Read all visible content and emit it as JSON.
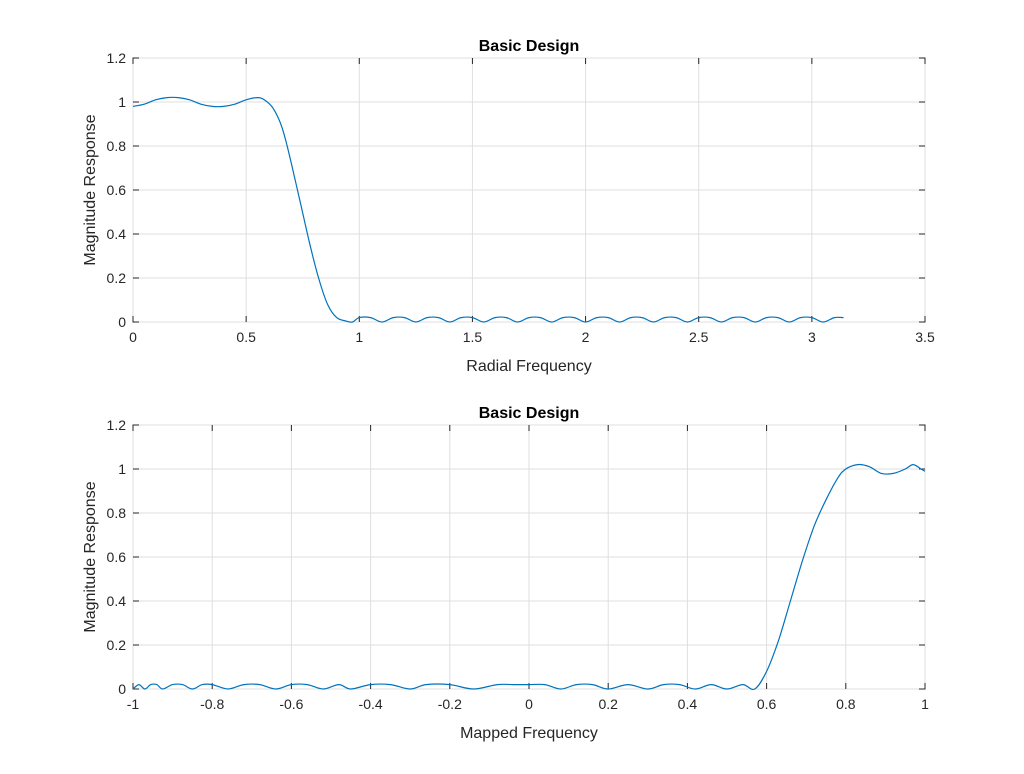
{
  "colors": {
    "series": "#0072bd",
    "grid": "#dfdfdf",
    "axis": "#262626",
    "background": "#ffffff"
  },
  "chart_data": [
    {
      "type": "line",
      "title": "Basic Design",
      "xlabel": "Radial Frequency",
      "ylabel": "Magnitude Response",
      "xlim": [
        0,
        3.5
      ],
      "ylim": [
        0,
        1.2
      ],
      "xticks": [
        0,
        0.5,
        1,
        1.5,
        2,
        2.5,
        3,
        3.5
      ],
      "xtick_labels": [
        "0",
        "0.5",
        "1",
        "1.5",
        "2",
        "2.5",
        "3",
        "3.5"
      ],
      "yticks": [
        0,
        0.2,
        0.4,
        0.6,
        0.8,
        1,
        1.2
      ],
      "ytick_labels": [
        "0",
        "0.2",
        "0.4",
        "0.6",
        "0.8",
        "1",
        "1.2"
      ],
      "grid": true,
      "series": [
        {
          "x": [
            0,
            0.05,
            0.1,
            0.15,
            0.2,
            0.25,
            0.3,
            0.35,
            0.4,
            0.45,
            0.5,
            0.55,
            0.58,
            0.62,
            0.66,
            0.7,
            0.74,
            0.78,
            0.82,
            0.86,
            0.9,
            0.94,
            0.97,
            1.0,
            1.05,
            1.1,
            1.15,
            1.2,
            1.25,
            1.3,
            1.35,
            1.4,
            1.45,
            1.5,
            1.55,
            1.6,
            1.65,
            1.7,
            1.75,
            1.8,
            1.85,
            1.9,
            1.95,
            2.0,
            2.05,
            2.1,
            2.15,
            2.2,
            2.25,
            2.3,
            2.35,
            2.4,
            2.45,
            2.5,
            2.55,
            2.6,
            2.65,
            2.7,
            2.75,
            2.8,
            2.85,
            2.9,
            2.95,
            3.0,
            3.05,
            3.1,
            3.14
          ],
          "y": [
            0.98,
            0.99,
            1.01,
            1.02,
            1.02,
            1.01,
            0.99,
            0.98,
            0.98,
            0.99,
            1.01,
            1.02,
            1.01,
            0.97,
            0.88,
            0.72,
            0.54,
            0.36,
            0.2,
            0.08,
            0.02,
            0.005,
            0.0,
            0.02,
            0.02,
            0.0,
            0.02,
            0.02,
            0.0,
            0.02,
            0.02,
            0.0,
            0.02,
            0.02,
            0.0,
            0.02,
            0.02,
            0.0,
            0.02,
            0.02,
            0.0,
            0.02,
            0.02,
            0.0,
            0.02,
            0.02,
            0.0,
            0.02,
            0.02,
            0.0,
            0.02,
            0.02,
            0.0,
            0.02,
            0.02,
            0.0,
            0.02,
            0.02,
            0.0,
            0.02,
            0.02,
            0.0,
            0.02,
            0.02,
            0.0,
            0.02,
            0.02
          ]
        }
      ]
    },
    {
      "type": "line",
      "title": "Basic Design",
      "xlabel": "Mapped Frequency",
      "ylabel": "Magnitude Response",
      "xlim": [
        -1,
        1
      ],
      "ylim": [
        0,
        1.2
      ],
      "xticks": [
        -1,
        -0.8,
        -0.6,
        -0.4,
        -0.2,
        0,
        0.2,
        0.4,
        0.6,
        0.8,
        1
      ],
      "xtick_labels": [
        "-1",
        "-0.8",
        "-0.6",
        "-0.4",
        "-0.2",
        "0",
        "0.2",
        "0.4",
        "0.6",
        "0.8",
        "1"
      ],
      "yticks": [
        0,
        0.2,
        0.4,
        0.6,
        0.8,
        1,
        1.2
      ],
      "ytick_labels": [
        "0",
        "0.2",
        "0.4",
        "0.6",
        "0.8",
        "1",
        "1.2"
      ],
      "grid": true,
      "series": [
        {
          "x": [
            -1.0,
            -0.985,
            -0.97,
            -0.955,
            -0.94,
            -0.925,
            -0.9,
            -0.875,
            -0.85,
            -0.825,
            -0.8,
            -0.76,
            -0.72,
            -0.68,
            -0.64,
            -0.6,
            -0.56,
            -0.52,
            -0.48,
            -0.45,
            -0.4,
            -0.35,
            -0.3,
            -0.26,
            -0.2,
            -0.14,
            -0.08,
            -0.04,
            0.0,
            0.04,
            0.08,
            0.12,
            0.16,
            0.2,
            0.25,
            0.3,
            0.34,
            0.38,
            0.42,
            0.46,
            0.5,
            0.54,
            0.57,
            0.6,
            0.63,
            0.66,
            0.69,
            0.72,
            0.75,
            0.78,
            0.8,
            0.83,
            0.86,
            0.89,
            0.92,
            0.95,
            0.97,
            0.99,
            1.0
          ],
          "y": [
            0.0,
            0.02,
            0.0,
            0.02,
            0.02,
            0.0,
            0.02,
            0.02,
            0.0,
            0.02,
            0.02,
            0.0,
            0.02,
            0.02,
            0.0,
            0.02,
            0.02,
            0.0,
            0.02,
            0.0,
            0.02,
            0.02,
            0.0,
            0.02,
            0.02,
            0.0,
            0.02,
            0.02,
            0.02,
            0.02,
            0.0,
            0.02,
            0.02,
            0.0,
            0.02,
            0.0,
            0.02,
            0.02,
            0.0,
            0.02,
            0.0,
            0.02,
            0.0,
            0.08,
            0.22,
            0.4,
            0.58,
            0.74,
            0.86,
            0.96,
            1.0,
            1.02,
            1.01,
            0.98,
            0.98,
            1.0,
            1.02,
            1.0,
            0.99
          ]
        }
      ]
    }
  ]
}
